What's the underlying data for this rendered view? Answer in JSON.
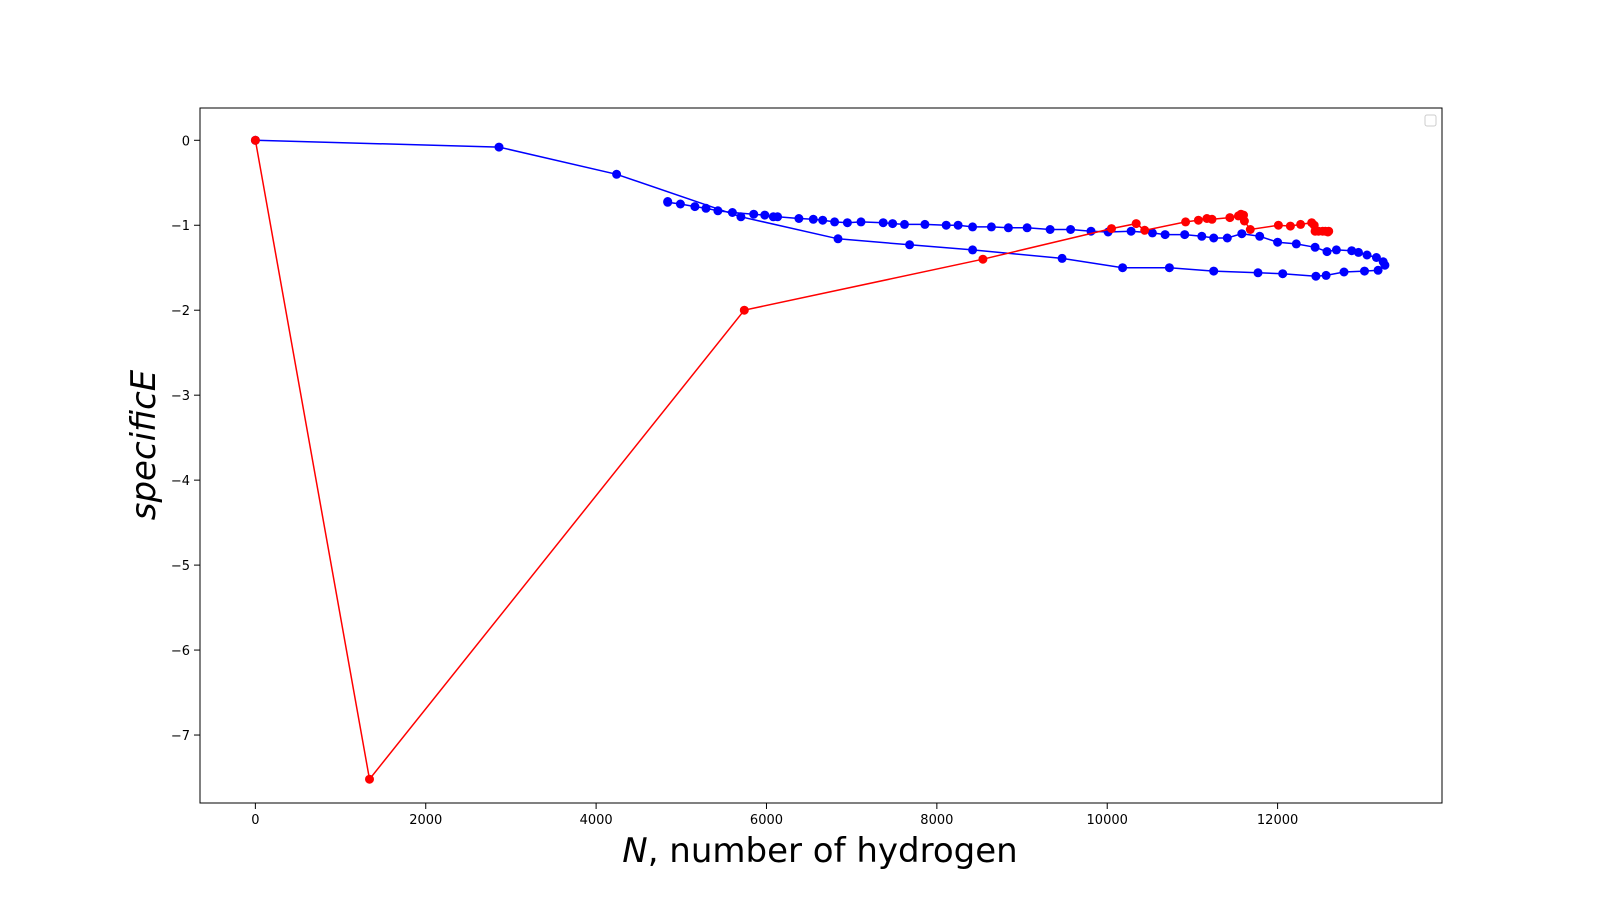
{
  "chart_data": {
    "type": "line",
    "title": "",
    "xlabel_italic": "N",
    "xlabel_rest": ", number of hydrogen",
    "ylabel": "specificE",
    "xlim": [
      -650,
      13930
    ],
    "ylim": [
      -7.8,
      0.38
    ],
    "xticks": [
      0,
      2000,
      4000,
      6000,
      8000,
      10000,
      12000
    ],
    "yticks": [
      0,
      -1,
      -2,
      -3,
      -4,
      -5,
      -6,
      -7
    ],
    "xtick_labels": [
      "0",
      "2000",
      "4000",
      "6000",
      "8000",
      "10000",
      "12000"
    ],
    "ytick_labels": [
      "0",
      "−1",
      "−2",
      "−3",
      "−4",
      "−5",
      "−6",
      "−7"
    ],
    "legend": "top-right (empty)",
    "grid": false,
    "series": [
      {
        "color": "#0000ff",
        "points": [
          [
            0,
            0
          ],
          [
            2860,
            -0.08
          ],
          [
            4240,
            -0.4
          ],
          [
            5700,
            -0.9
          ],
          [
            6840,
            -1.16
          ],
          [
            7680,
            -1.23
          ],
          [
            8420,
            -1.29
          ],
          [
            9470,
            -1.39
          ],
          [
            10180,
            -1.5
          ],
          [
            10730,
            -1.5
          ],
          [
            11250,
            -1.54
          ],
          [
            11770,
            -1.56
          ],
          [
            12060,
            -1.57
          ],
          [
            12450,
            -1.6
          ],
          [
            12570,
            -1.59
          ],
          [
            12780,
            -1.55
          ],
          [
            13020,
            -1.54
          ],
          [
            13180,
            -1.53
          ],
          [
            13260,
            -1.47
          ],
          [
            13240,
            -1.43
          ],
          [
            13160,
            -1.38
          ],
          [
            13050,
            -1.35
          ],
          [
            12950,
            -1.32
          ],
          [
            12870,
            -1.3
          ],
          [
            12690,
            -1.29
          ],
          [
            12580,
            -1.31
          ],
          [
            12440,
            -1.26
          ],
          [
            12220,
            -1.22
          ],
          [
            12000,
            -1.2
          ],
          [
            11790,
            -1.13
          ],
          [
            11580,
            -1.1
          ],
          [
            11410,
            -1.15
          ],
          [
            11250,
            -1.15
          ],
          [
            11110,
            -1.13
          ],
          [
            10910,
            -1.11
          ],
          [
            10680,
            -1.11
          ],
          [
            10530,
            -1.09
          ],
          [
            10280,
            -1.07
          ],
          [
            10010,
            -1.08
          ],
          [
            9810,
            -1.07
          ],
          [
            9570,
            -1.05
          ],
          [
            9330,
            -1.05
          ],
          [
            9060,
            -1.03
          ],
          [
            8840,
            -1.03
          ],
          [
            8640,
            -1.02
          ],
          [
            8420,
            -1.02
          ],
          [
            8250,
            -1.0
          ],
          [
            8110,
            -1.0
          ],
          [
            7860,
            -0.99
          ],
          [
            7620,
            -0.99
          ],
          [
            7480,
            -0.98
          ],
          [
            7370,
            -0.97
          ],
          [
            7110,
            -0.96
          ],
          [
            6950,
            -0.97
          ],
          [
            6800,
            -0.96
          ],
          [
            6660,
            -0.94
          ],
          [
            6550,
            -0.93
          ],
          [
            6380,
            -0.92
          ],
          [
            6130,
            -0.9
          ],
          [
            6080,
            -0.9
          ],
          [
            5980,
            -0.88
          ],
          [
            5850,
            -0.87
          ],
          [
            5600,
            -0.85
          ],
          [
            5430,
            -0.83
          ],
          [
            5290,
            -0.8
          ],
          [
            5160,
            -0.78
          ],
          [
            4990,
            -0.75
          ],
          [
            4840,
            -0.73
          ],
          [
            4840,
            -0.72
          ]
        ]
      },
      {
        "color": "#ff0000",
        "points": [
          [
            0,
            0
          ],
          [
            1340,
            -7.52
          ],
          [
            5740,
            -2.0
          ],
          [
            8540,
            -1.4
          ],
          [
            10050,
            -1.04
          ],
          [
            10340,
            -0.98
          ],
          [
            10440,
            -1.06
          ],
          [
            10920,
            -0.96
          ],
          [
            11070,
            -0.94
          ],
          [
            11170,
            -0.92
          ],
          [
            11230,
            -0.93
          ],
          [
            11440,
            -0.91
          ],
          [
            11540,
            -0.89
          ],
          [
            11570,
            -0.87
          ],
          [
            11600,
            -0.88
          ],
          [
            11610,
            -0.95
          ],
          [
            11680,
            -1.05
          ],
          [
            12010,
            -1.0
          ],
          [
            12150,
            -1.01
          ],
          [
            12270,
            -0.99
          ],
          [
            12400,
            -0.97
          ],
          [
            12430,
            -1.0
          ],
          [
            12440,
            -1.07
          ],
          [
            12480,
            -1.07
          ],
          [
            12530,
            -1.07
          ],
          [
            12560,
            -1.07
          ],
          [
            12590,
            -1.08
          ],
          [
            12600,
            -1.07
          ]
        ]
      }
    ]
  }
}
